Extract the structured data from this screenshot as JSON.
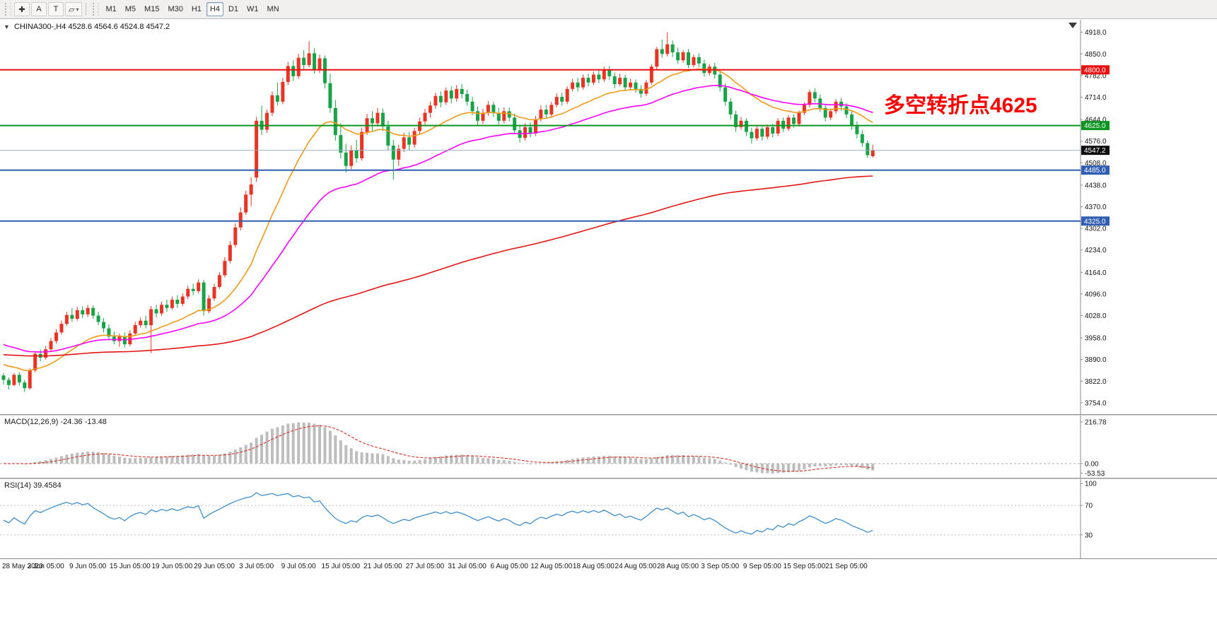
{
  "toolbar": {
    "tools": [
      {
        "name": "crosshair",
        "glyph": "✚"
      },
      {
        "name": "text-label",
        "glyph": "A"
      },
      {
        "name": "text-box",
        "glyph": "T"
      },
      {
        "name": "shapes",
        "glyph": "▱",
        "caret": true
      }
    ],
    "caret": "▾",
    "timeframes": [
      "M1",
      "M5",
      "M15",
      "M30",
      "H1",
      "H4",
      "D1",
      "W1",
      "MN"
    ],
    "active_timeframe": "H4"
  },
  "chart": {
    "title": {
      "collapse_icon": "▼",
      "symbol_period": "CHINA300-,H4",
      "ohlc": "4528.6 4564.6 4524.8 4547.2"
    },
    "annotation": {
      "text": "多空转折点4625",
      "color": "#fe0000"
    },
    "price_axis": {
      "ticks": [
        "4918.0",
        "4850.0",
        "4782.0",
        "4714.0",
        "4644.0",
        "4576.0",
        "4508.0",
        "4438.0",
        "4370.0",
        "4302.0",
        "4234.0",
        "4164.0",
        "4096.0",
        "4028.0",
        "3958.0",
        "3890.0",
        "3822.0",
        "3754.0"
      ]
    },
    "hlines": [
      {
        "price": 4800,
        "label": "4800.0",
        "color": "#e81010"
      },
      {
        "price": 4625,
        "label": "4625.0",
        "color": "#0a9420"
      },
      {
        "price": 4485,
        "label": "4485.0",
        "color": "#2f5eb3"
      },
      {
        "price": 4325,
        "label": "4325.0",
        "color": "#2f5eb3"
      }
    ],
    "current_price": {
      "value": 4547.2,
      "label": "4547.2",
      "line_color": "#9bb0c4",
      "badge_bg": "#0d0d0d"
    },
    "time_axis": {
      "bars_per_label": 8,
      "labels": [
        "28 May 2020",
        "3 Jun 05:00",
        "9 Jun 05:00",
        "15 Jun 05:00",
        "19 Jun 05:00",
        "29 Jun 05:00",
        "3 Jul 05:00",
        "9 Jul 05:00",
        "15 Jul 05:00",
        "21 Jul 05:00",
        "27 Jul 05:00",
        "31 Jul 05:00",
        "6 Aug 05:00",
        "12 Aug 05:00",
        "18 Aug 05:00",
        "24 Aug 05:00",
        "28 Aug 05:00",
        "3 Sep 05:00",
        "9 Sep 05:00",
        "15 Sep 05:00",
        "21 Sep 05:00"
      ]
    }
  },
  "indicators": {
    "macd": {
      "label": "MACD(12,26,9)",
      "values_text": "-24.36 -13.48",
      "fast": 12,
      "slow": 26,
      "signal": 9,
      "scale": {
        "max": "216.78",
        "zero": "0.00",
        "min": "-53.53"
      },
      "histogram_color": "#bdbdbd",
      "signal_color": "#d93025"
    },
    "rsi": {
      "label": "RSI(14)",
      "value_text": "39.4584",
      "period": 14,
      "levels": [
        70,
        30
      ],
      "scale_labels": [
        "100",
        "70",
        "30"
      ],
      "line_color": "#3f8ecb"
    }
  },
  "chart_data": {
    "type": "candlestick",
    "symbol": "CHINA300-",
    "timeframe": "H4",
    "last_ohlc": {
      "open": 4528.6,
      "high": 4564.6,
      "low": 4524.8,
      "close": 4547.2
    },
    "price_axis_range": [
      3754,
      4918
    ],
    "colors": {
      "up": "#ea3323",
      "down": "#18a348"
    },
    "moving_averages": [
      {
        "name": "fast",
        "period": 20,
        "seed": 3880,
        "color": "#f09a1a"
      },
      {
        "name": "medium",
        "period": 45,
        "seed": 3942,
        "color": "#ff00ff"
      },
      {
        "name": "slow",
        "period": 200,
        "seed": 3906,
        "color": "#e51414"
      }
    ],
    "candles": [
      [
        3840,
        3848,
        3812,
        3826
      ],
      [
        3826,
        3834,
        3796,
        3810
      ],
      [
        3810,
        3848,
        3806,
        3842
      ],
      [
        3842,
        3850,
        3808,
        3818
      ],
      [
        3818,
        3826,
        3788,
        3800
      ],
      [
        3800,
        3862,
        3795,
        3856
      ],
      [
        3856,
        3916,
        3850,
        3908
      ],
      [
        3908,
        3922,
        3884,
        3896
      ],
      [
        3896,
        3932,
        3890,
        3922
      ],
      [
        3922,
        3958,
        3915,
        3948
      ],
      [
        3948,
        3986,
        3940,
        3975
      ],
      [
        3975,
        4012,
        3968,
        4002
      ],
      [
        4002,
        4040,
        3996,
        4030
      ],
      [
        4030,
        4052,
        4008,
        4018
      ],
      [
        4018,
        4056,
        4012,
        4045
      ],
      [
        4045,
        4058,
        4020,
        4032
      ],
      [
        4032,
        4062,
        4024,
        4052
      ],
      [
        4052,
        4060,
        4018,
        4028
      ],
      [
        4028,
        4040,
        3998,
        4008
      ],
      [
        4008,
        4020,
        3975,
        3988
      ],
      [
        3988,
        4000,
        3952,
        3962
      ],
      [
        3962,
        3978,
        3938,
        3948
      ],
      [
        3948,
        3972,
        3930,
        3962
      ],
      [
        3962,
        3975,
        3928,
        3938
      ],
      [
        3938,
        3982,
        3932,
        3972
      ],
      [
        3972,
        4008,
        3965,
        3998
      ],
      [
        3998,
        4022,
        3990,
        4012
      ],
      [
        4012,
        4028,
        3988,
        3998
      ],
      [
        3998,
        4058,
        3910,
        4048
      ],
      [
        4048,
        4062,
        4022,
        4035
      ],
      [
        4035,
        4072,
        4028,
        4062
      ],
      [
        4062,
        4078,
        4040,
        4052
      ],
      [
        4052,
        4088,
        4046,
        4078
      ],
      [
        4078,
        4092,
        4052,
        4065
      ],
      [
        4065,
        4098,
        4058,
        4088
      ],
      [
        4088,
        4122,
        4080,
        4112
      ],
      [
        4112,
        4128,
        4092,
        4105
      ],
      [
        4105,
        4142,
        4098,
        4132
      ],
      [
        4132,
        4140,
        4028,
        4042
      ],
      [
        4042,
        4092,
        4035,
        4082
      ],
      [
        4082,
        4128,
        4075,
        4118
      ],
      [
        4118,
        4165,
        4112,
        4155
      ],
      [
        4155,
        4212,
        4148,
        4200
      ],
      [
        4200,
        4262,
        4192,
        4250
      ],
      [
        4250,
        4318,
        4242,
        4305
      ],
      [
        4305,
        4368,
        4295,
        4352
      ],
      [
        4352,
        4420,
        4345,
        4408
      ],
      [
        4408,
        4462,
        4372,
        4440
      ],
      [
        4462,
        4652,
        4448,
        4640
      ],
      [
        4640,
        4688,
        4595,
        4612
      ],
      [
        4612,
        4675,
        4602,
        4665
      ],
      [
        4665,
        4732,
        4655,
        4720
      ],
      [
        4720,
        4760,
        4688,
        4700
      ],
      [
        4700,
        4775,
        4692,
        4762
      ],
      [
        4762,
        4825,
        4752,
        4812
      ],
      [
        4812,
        4830,
        4765,
        4780
      ],
      [
        4780,
        4850,
        4772,
        4838
      ],
      [
        4838,
        4862,
        4798,
        4815
      ],
      [
        4815,
        4890,
        4808,
        4852
      ],
      [
        4852,
        4868,
        4788,
        4800
      ],
      [
        4800,
        4848,
        4790,
        4836
      ],
      [
        4836,
        4845,
        4742,
        4758
      ],
      [
        4758,
        4788,
        4665,
        4680
      ],
      [
        4680,
        4705,
        4578,
        4595
      ],
      [
        4595,
        4632,
        4522,
        4540
      ],
      [
        4540,
        4568,
        4478,
        4498
      ],
      [
        4498,
        4562,
        4488,
        4548
      ],
      [
        4548,
        4580,
        4508,
        4522
      ],
      [
        4522,
        4618,
        4515,
        4605
      ],
      [
        4605,
        4662,
        4595,
        4648
      ],
      [
        4648,
        4670,
        4608,
        4632
      ],
      [
        4632,
        4680,
        4622,
        4665
      ],
      [
        4665,
        4678,
        4608,
        4622
      ],
      [
        4622,
        4640,
        4548,
        4562
      ],
      [
        4562,
        4580,
        4455,
        4518
      ],
      [
        4518,
        4565,
        4498,
        4552
      ],
      [
        4552,
        4602,
        4542,
        4588
      ],
      [
        4588,
        4605,
        4548,
        4565
      ],
      [
        4565,
        4618,
        4555,
        4608
      ],
      [
        4608,
        4650,
        4598,
        4638
      ],
      [
        4638,
        4678,
        4628,
        4665
      ],
      [
        4665,
        4700,
        4650,
        4688
      ],
      [
        4688,
        4728,
        4678,
        4718
      ],
      [
        4718,
        4732,
        4682,
        4698
      ],
      [
        4698,
        4745,
        4690,
        4735
      ],
      [
        4735,
        4748,
        4695,
        4710
      ],
      [
        4710,
        4752,
        4700,
        4740
      ],
      [
        4740,
        4755,
        4710,
        4724
      ],
      [
        4724,
        4738,
        4688,
        4700
      ],
      [
        4700,
        4715,
        4658,
        4670
      ],
      [
        4670,
        4685,
        4625,
        4640
      ],
      [
        4640,
        4678,
        4630,
        4665
      ],
      [
        4665,
        4702,
        4655,
        4690
      ],
      [
        4690,
        4700,
        4652,
        4664
      ],
      [
        4664,
        4680,
        4628,
        4640
      ],
      [
        4640,
        4682,
        4632,
        4670
      ],
      [
        4670,
        4682,
        4638,
        4650
      ],
      [
        4650,
        4662,
        4598,
        4610
      ],
      [
        4610,
        4625,
        4572,
        4586
      ],
      [
        4586,
        4632,
        4578,
        4620
      ],
      [
        4620,
        4635,
        4588,
        4600
      ],
      [
        4600,
        4655,
        4592,
        4645
      ],
      [
        4645,
        4688,
        4638,
        4675
      ],
      [
        4675,
        4690,
        4648,
        4660
      ],
      [
        4660,
        4700,
        4652,
        4690
      ],
      [
        4690,
        4726,
        4682,
        4715
      ],
      [
        4715,
        4728,
        4688,
        4700
      ],
      [
        4700,
        4748,
        4692,
        4740
      ],
      [
        4740,
        4772,
        4732,
        4760
      ],
      [
        4760,
        4775,
        4732,
        4745
      ],
      [
        4745,
        4785,
        4738,
        4775
      ],
      [
        4775,
        4788,
        4748,
        4760
      ],
      [
        4760,
        4795,
        4752,
        4785
      ],
      [
        4785,
        4798,
        4758,
        4770
      ],
      [
        4770,
        4810,
        4762,
        4800
      ],
      [
        4800,
        4812,
        4768,
        4780
      ],
      [
        4780,
        4792,
        4742,
        4755
      ],
      [
        4755,
        4788,
        4748,
        4775
      ],
      [
        4775,
        4785,
        4735,
        4745
      ],
      [
        4745,
        4772,
        4738,
        4760
      ],
      [
        4760,
        4770,
        4728,
        4740
      ],
      [
        4740,
        4752,
        4712,
        4725
      ],
      [
        4725,
        4768,
        4718,
        4760
      ],
      [
        4760,
        4818,
        4752,
        4810
      ],
      [
        4810,
        4872,
        4802,
        4865
      ],
      [
        4865,
        4895,
        4838,
        4850
      ],
      [
        4850,
        4918,
        4842,
        4880
      ],
      [
        4880,
        4892,
        4840,
        4855
      ],
      [
        4855,
        4870,
        4818,
        4830
      ],
      [
        4830,
        4862,
        4822,
        4855
      ],
      [
        4855,
        4865,
        4805,
        4815
      ],
      [
        4815,
        4848,
        4808,
        4840
      ],
      [
        4840,
        4852,
        4808,
        4820
      ],
      [
        4820,
        4832,
        4778,
        4790
      ],
      [
        4790,
        4818,
        4782,
        4810
      ],
      [
        4810,
        4822,
        4772,
        4785
      ],
      [
        4785,
        4795,
        4732,
        4745
      ],
      [
        4745,
        4758,
        4688,
        4700
      ],
      [
        4700,
        4712,
        4645,
        4660
      ],
      [
        4660,
        4672,
        4605,
        4620
      ],
      [
        4620,
        4652,
        4612,
        4640
      ],
      [
        4640,
        4648,
        4592,
        4605
      ],
      [
        4605,
        4618,
        4568,
        4585
      ],
      [
        4585,
        4625,
        4578,
        4615
      ],
      [
        4615,
        4622,
        4578,
        4590
      ],
      [
        4590,
        4628,
        4582,
        4620
      ],
      [
        4620,
        4630,
        4588,
        4600
      ],
      [
        4600,
        4648,
        4592,
        4640
      ],
      [
        4640,
        4650,
        4605,
        4615
      ],
      [
        4615,
        4658,
        4608,
        4650
      ],
      [
        4650,
        4660,
        4618,
        4630
      ],
      [
        4630,
        4672,
        4622,
        4665
      ],
      [
        4665,
        4698,
        4658,
        4690
      ],
      [
        4690,
        4738,
        4682,
        4730
      ],
      [
        4730,
        4742,
        4698,
        4710
      ],
      [
        4710,
        4722,
        4668,
        4680
      ],
      [
        4680,
        4692,
        4638,
        4650
      ],
      [
        4650,
        4678,
        4642,
        4670
      ],
      [
        4670,
        4708,
        4662,
        4700
      ],
      [
        4700,
        4712,
        4672,
        4685
      ],
      [
        4685,
        4695,
        4648,
        4660
      ],
      [
        4660,
        4670,
        4612,
        4625
      ],
      [
        4625,
        4638,
        4585,
        4598
      ],
      [
        4598,
        4610,
        4558,
        4570
      ],
      [
        4570,
        4578,
        4524,
        4532
      ],
      [
        4528.6,
        4564.6,
        4524.8,
        4547.2
      ]
    ]
  }
}
